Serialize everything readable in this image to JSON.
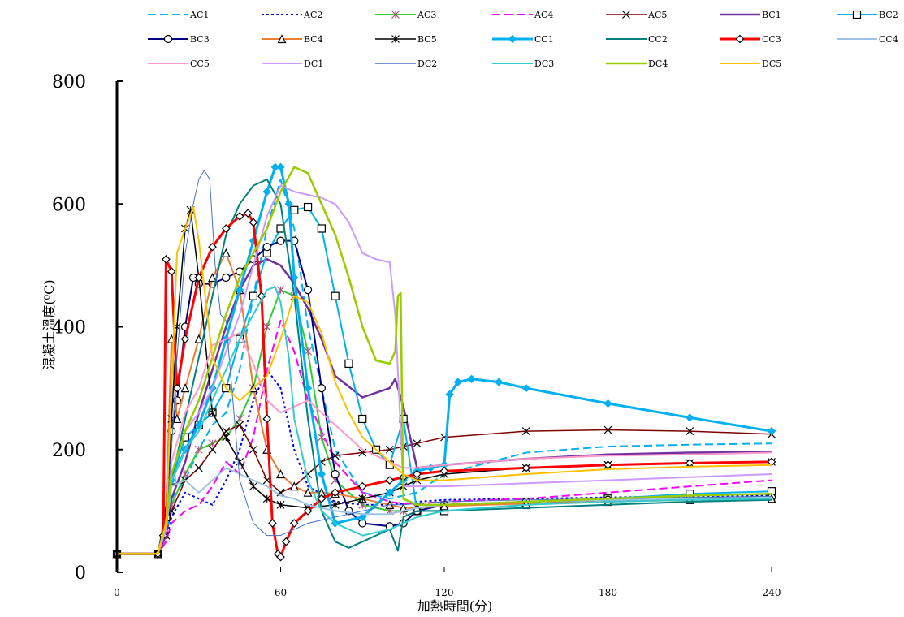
{
  "chart_data": {
    "type": "line",
    "title": "",
    "xlabel": "加熱時間(分)",
    "ylabel": "混凝土溫度(⁰C)",
    "xlim": [
      0,
      240
    ],
    "ylim": [
      0,
      800
    ],
    "xticks": [
      0,
      60,
      120,
      180,
      240
    ],
    "yticks": [
      0,
      200,
      400,
      600,
      800
    ],
    "grid": false,
    "legend_position": "top",
    "series": [
      {
        "name": "AC1",
        "color": "#00B0F0",
        "dash": "10,5",
        "marker": "none",
        "width": 2,
        "x": [
          0,
          15,
          18,
          20,
          25,
          30,
          35,
          40,
          45,
          50,
          55,
          60,
          65,
          70,
          80,
          90,
          100,
          105,
          110,
          120,
          150,
          180,
          210,
          240
        ],
        "y": [
          30,
          30,
          60,
          120,
          150,
          200,
          240,
          260,
          330,
          450,
          560,
          640,
          560,
          400,
          200,
          130,
          120,
          125,
          130,
          160,
          195,
          205,
          208,
          210
        ]
      },
      {
        "name": "AC2",
        "color": "#0000FF",
        "dash": "3,3",
        "marker": "none",
        "width": 2,
        "x": [
          0,
          15,
          18,
          20,
          25,
          30,
          35,
          40,
          45,
          50,
          55,
          60,
          65,
          70,
          80,
          90,
          100,
          105,
          110,
          120,
          150,
          180,
          210,
          240
        ],
        "y": [
          30,
          30,
          50,
          90,
          130,
          120,
          110,
          150,
          200,
          280,
          330,
          300,
          200,
          140,
          115,
          110,
          110,
          112,
          115,
          118,
          120,
          122,
          124,
          125
        ]
      },
      {
        "name": "AC3",
        "color": "#33CC33",
        "dash": "",
        "marker": "asterisk",
        "width": 2,
        "x": [
          0,
          15,
          18,
          20,
          25,
          30,
          35,
          40,
          45,
          50,
          55,
          60,
          65,
          70,
          75,
          80,
          90,
          100,
          105,
          110,
          120,
          150,
          180,
          210,
          240
        ],
        "y": [
          30,
          30,
          60,
          110,
          160,
          200,
          210,
          220,
          250,
          300,
          400,
          460,
          450,
          360,
          220,
          150,
          110,
          100,
          100,
          105,
          110,
          115,
          118,
          120,
          122
        ]
      },
      {
        "name": "AC4",
        "color": "#FF00FF",
        "dash": "10,5",
        "marker": "none",
        "width": 2,
        "x": [
          0,
          15,
          18,
          20,
          25,
          30,
          35,
          40,
          45,
          50,
          55,
          60,
          65,
          70,
          80,
          90,
          100,
          105,
          110,
          120,
          150,
          180,
          210,
          240
        ],
        "y": [
          30,
          30,
          50,
          80,
          100,
          110,
          140,
          180,
          160,
          220,
          330,
          410,
          360,
          280,
          180,
          130,
          115,
          112,
          112,
          115,
          120,
          130,
          140,
          150
        ]
      },
      {
        "name": "AC5",
        "color": "#7F0000",
        "dash": "",
        "marker": "x",
        "width": 1.5,
        "x": [
          0,
          15,
          18,
          20,
          25,
          30,
          35,
          40,
          45,
          50,
          55,
          60,
          65,
          70,
          75,
          80,
          90,
          100,
          105,
          110,
          120,
          150,
          180,
          210,
          240
        ],
        "y": [
          30,
          30,
          60,
          100,
          150,
          170,
          200,
          230,
          240,
          200,
          150,
          130,
          140,
          160,
          180,
          190,
          195,
          200,
          205,
          210,
          220,
          230,
          232,
          230,
          225
        ]
      },
      {
        "name": "BC1",
        "color": "#7030A0",
        "dash": "",
        "marker": "none",
        "width": 2.5,
        "x": [
          0,
          15,
          18,
          20,
          25,
          30,
          35,
          40,
          45,
          50,
          55,
          60,
          65,
          70,
          75,
          80,
          90,
          100,
          102,
          105,
          110,
          120,
          150,
          180,
          210,
          240
        ],
        "y": [
          30,
          30,
          60,
          120,
          180,
          260,
          330,
          400,
          460,
          500,
          510,
          500,
          470,
          430,
          380,
          320,
          285,
          300,
          315,
          270,
          170,
          175,
          185,
          192,
          195,
          196
        ]
      },
      {
        "name": "BC2",
        "color": "#00B0F0",
        "dash": "",
        "marker": "square",
        "width": 2,
        "x": [
          0,
          15,
          18,
          20,
          25,
          30,
          35,
          40,
          45,
          50,
          55,
          60,
          65,
          70,
          75,
          80,
          85,
          90,
          95,
          100,
          105,
          110,
          120,
          150,
          180,
          210,
          240
        ],
        "y": [
          30,
          30,
          90,
          150,
          220,
          240,
          260,
          300,
          380,
          450,
          520,
          560,
          590,
          595,
          560,
          450,
          340,
          250,
          200,
          175,
          250,
          100,
          100,
          110,
          120,
          128,
          132
        ]
      },
      {
        "name": "BC3",
        "color": "#000080",
        "dash": "",
        "marker": "circle",
        "width": 2,
        "x": [
          0,
          15,
          18,
          20,
          22,
          25,
          28,
          30,
          35,
          40,
          45,
          50,
          55,
          60,
          65,
          70,
          75,
          80,
          85,
          90,
          100,
          105,
          110,
          120,
          150,
          180,
          210,
          240
        ],
        "y": [
          30,
          30,
          100,
          230,
          280,
          400,
          480,
          470,
          470,
          480,
          490,
          510,
          530,
          540,
          540,
          460,
          300,
          160,
          100,
          80,
          75,
          80,
          100,
          110,
          115,
          118,
          120,
          122
        ]
      },
      {
        "name": "BC4",
        "color": "#ED7D31",
        "dash": "",
        "marker": "triangle",
        "width": 2,
        "x": [
          0,
          15,
          18,
          20,
          22,
          25,
          30,
          35,
          40,
          45,
          50,
          55,
          60,
          65,
          70,
          75,
          80,
          90,
          100,
          105,
          110,
          120,
          150,
          180,
          210,
          240
        ],
        "y": [
          30,
          30,
          100,
          380,
          250,
          300,
          380,
          480,
          520,
          460,
          300,
          200,
          160,
          140,
          130,
          130,
          128,
          120,
          110,
          105,
          105,
          108,
          112,
          115,
          118,
          120
        ]
      },
      {
        "name": "BC5",
        "color": "#000000",
        "dash": "",
        "marker": "asterisk",
        "width": 1.5,
        "x": [
          0,
          15,
          18,
          20,
          22,
          25,
          27,
          30,
          35,
          40,
          45,
          50,
          55,
          60,
          70,
          80,
          90,
          100,
          105,
          110,
          120,
          150,
          180,
          210,
          240
        ],
        "y": [
          30,
          30,
          100,
          250,
          400,
          560,
          590,
          480,
          260,
          220,
          180,
          140,
          120,
          110,
          105,
          110,
          120,
          130,
          140,
          150,
          160,
          170,
          175,
          178,
          180
        ]
      },
      {
        "name": "CC1",
        "color": "#00B0F0",
        "dash": "",
        "marker": "diamond-filled",
        "width": 3,
        "x": [
          0,
          15,
          18,
          20,
          25,
          30,
          35,
          40,
          45,
          50,
          55,
          58,
          60,
          63,
          65,
          70,
          75,
          80,
          90,
          100,
          105,
          110,
          115,
          120,
          122,
          125,
          130,
          140,
          150,
          180,
          210,
          240
        ],
        "y": [
          30,
          30,
          80,
          150,
          200,
          240,
          300,
          380,
          460,
          540,
          620,
          660,
          660,
          600,
          480,
          300,
          160,
          80,
          90,
          130,
          150,
          165,
          170,
          175,
          290,
          310,
          315,
          310,
          300,
          275,
          252,
          230
        ]
      },
      {
        "name": "CC2",
        "color": "#008080",
        "dash": "",
        "marker": "none",
        "width": 2,
        "x": [
          0,
          15,
          18,
          20,
          25,
          30,
          35,
          40,
          45,
          50,
          55,
          60,
          65,
          70,
          75,
          80,
          85,
          90,
          95,
          100,
          103,
          105,
          110,
          120,
          150,
          180,
          210,
          240
        ],
        "y": [
          30,
          30,
          80,
          150,
          250,
          350,
          450,
          550,
          600,
          630,
          640,
          600,
          450,
          250,
          100,
          50,
          40,
          50,
          60,
          70,
          35,
          90,
          100,
          100,
          105,
          110,
          115,
          118
        ]
      },
      {
        "name": "CC3",
        "color": "#FF0000",
        "dash": "",
        "marker": "diamond",
        "width": 3,
        "x": [
          0,
          15,
          17,
          18,
          20,
          22,
          25,
          30,
          35,
          40,
          45,
          48,
          50,
          53,
          55,
          57,
          59,
          60,
          62,
          65,
          70,
          75,
          80,
          90,
          100,
          105,
          110,
          120,
          150,
          180,
          210,
          240
        ],
        "y": [
          30,
          30,
          60,
          510,
          490,
          300,
          380,
          480,
          530,
          560,
          580,
          585,
          570,
          450,
          250,
          80,
          30,
          25,
          50,
          80,
          100,
          120,
          130,
          140,
          150,
          155,
          160,
          165,
          170,
          175,
          178,
          180
        ]
      },
      {
        "name": "CC4",
        "color": "#9DC3E6",
        "dash": "",
        "marker": "none",
        "width": 2,
        "x": [
          0,
          15,
          18,
          20,
          25,
          30,
          35,
          40,
          45,
          50,
          55,
          60,
          65,
          70,
          80,
          90,
          100,
          105,
          110,
          120,
          150,
          180,
          210,
          240
        ],
        "y": [
          30,
          30,
          70,
          140,
          150,
          130,
          150,
          170,
          160,
          150,
          140,
          125,
          120,
          110,
          100,
          95,
          95,
          100,
          105,
          110,
          115,
          118,
          120,
          122
        ]
      },
      {
        "name": "CC5",
        "color": "#FF99CC",
        "dash": "",
        "marker": "none",
        "width": 2,
        "x": [
          0,
          15,
          18,
          20,
          25,
          30,
          35,
          40,
          45,
          50,
          55,
          60,
          65,
          70,
          75,
          80,
          90,
          100,
          105,
          110,
          120,
          150,
          180,
          210,
          240
        ],
        "y": [
          30,
          30,
          80,
          180,
          260,
          300,
          370,
          380,
          390,
          340,
          280,
          260,
          270,
          280,
          260,
          240,
          200,
          180,
          170,
          170,
          175,
          185,
          190,
          192,
          195
        ]
      },
      {
        "name": "DC1",
        "color": "#CC99FF",
        "dash": "",
        "marker": "none",
        "width": 2,
        "x": [
          0,
          15,
          18,
          20,
          25,
          30,
          35,
          40,
          45,
          50,
          55,
          60,
          65,
          70,
          75,
          80,
          85,
          90,
          95,
          100,
          102,
          105,
          110,
          120,
          150,
          180,
          210,
          240
        ],
        "y": [
          30,
          30,
          70,
          160,
          230,
          260,
          300,
          360,
          420,
          500,
          580,
          630,
          620,
          615,
          610,
          600,
          570,
          520,
          510,
          505,
          420,
          140,
          140,
          140,
          145,
          150,
          155,
          160
        ]
      },
      {
        "name": "DC2",
        "color": "#4472C4",
        "dash": "",
        "marker": "none",
        "width": 1,
        "x": [
          0,
          15,
          18,
          20,
          22,
          25,
          28,
          30,
          32,
          34,
          36,
          38,
          40,
          45,
          50,
          55,
          60,
          65,
          70,
          80,
          90,
          100,
          105,
          110,
          120,
          150,
          180,
          210,
          240
        ],
        "y": [
          30,
          30,
          80,
          200,
          350,
          520,
          600,
          640,
          655,
          640,
          500,
          420,
          410,
          150,
          80,
          60,
          60,
          70,
          80,
          90,
          100,
          110,
          110,
          112,
          115,
          118,
          120,
          122,
          124
        ]
      },
      {
        "name": "DC3",
        "color": "#33CCCC",
        "dash": "",
        "marker": "none",
        "width": 2,
        "x": [
          0,
          15,
          18,
          20,
          25,
          30,
          35,
          40,
          45,
          50,
          55,
          58,
          60,
          63,
          65,
          70,
          75,
          80,
          90,
          100,
          105,
          110,
          120,
          150,
          180,
          210,
          240
        ],
        "y": [
          30,
          30,
          80,
          150,
          200,
          230,
          280,
          330,
          380,
          420,
          460,
          465,
          440,
          350,
          250,
          150,
          100,
          80,
          60,
          70,
          80,
          90,
          100,
          110,
          115,
          118,
          120
        ]
      },
      {
        "name": "DC4",
        "color": "#99CC00",
        "dash": "",
        "marker": "none",
        "width": 2.5,
        "x": [
          0,
          15,
          18,
          20,
          25,
          30,
          35,
          40,
          45,
          50,
          55,
          60,
          65,
          70,
          75,
          80,
          85,
          90,
          95,
          100,
          102,
          103,
          104,
          105,
          110,
          120,
          150,
          180,
          210,
          240
        ],
        "y": [
          30,
          30,
          80,
          160,
          230,
          280,
          350,
          420,
          480,
          520,
          560,
          620,
          660,
          650,
          600,
          550,
          480,
          400,
          345,
          340,
          360,
          450,
          455,
          120,
          110,
          110,
          115,
          120,
          125,
          128
        ]
      },
      {
        "name": "DC5",
        "color": "#FFC000",
        "dash": "",
        "marker": "none",
        "width": 2,
        "x": [
          0,
          15,
          18,
          20,
          22,
          25,
          28,
          30,
          35,
          40,
          45,
          50,
          55,
          60,
          65,
          70,
          75,
          80,
          85,
          90,
          100,
          105,
          110,
          120,
          150,
          180,
          210,
          240
        ],
        "y": [
          30,
          30,
          80,
          300,
          520,
          560,
          595,
          540,
          350,
          300,
          280,
          300,
          320,
          380,
          450,
          440,
          390,
          310,
          260,
          220,
          180,
          160,
          150,
          150,
          160,
          168,
          172,
          175
        ]
      }
    ]
  }
}
